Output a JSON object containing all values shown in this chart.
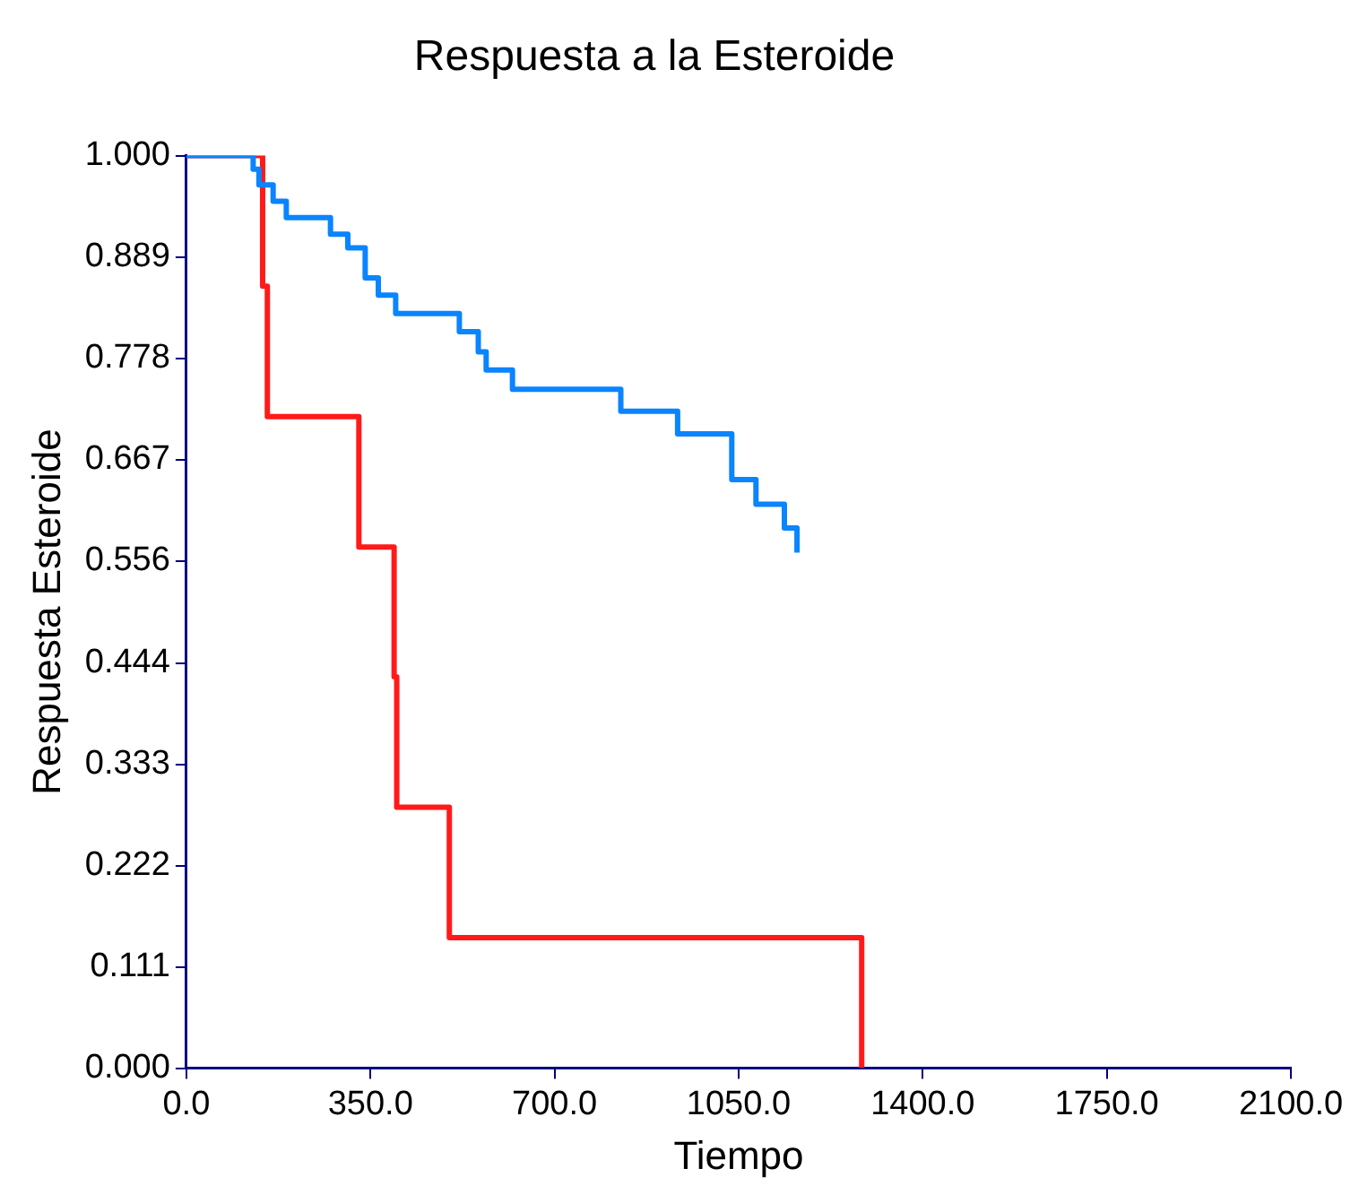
{
  "chart_data": {
    "type": "step",
    "title": "Respuesta a la Esteroide",
    "xlabel": "Tiempo",
    "ylabel": "Respuesta Esteroide",
    "xlim": [
      0,
      2100
    ],
    "ylim": [
      0,
      1
    ],
    "xticks": [
      {
        "value": 0,
        "label": "0.0"
      },
      {
        "value": 350,
        "label": "350.0"
      },
      {
        "value": 700,
        "label": "700.0"
      },
      {
        "value": 1050,
        "label": "1050.0"
      },
      {
        "value": 1400,
        "label": "1400.0"
      },
      {
        "value": 1750,
        "label": "1750.0"
      },
      {
        "value": 2100,
        "label": "2100.0"
      }
    ],
    "yticks": [
      {
        "value": 0,
        "label": "0.000"
      },
      {
        "value": 0.111,
        "label": "0.111"
      },
      {
        "value": 0.222,
        "label": "0.222"
      },
      {
        "value": 0.333,
        "label": "0.333"
      },
      {
        "value": 0.444,
        "label": "0.444"
      },
      {
        "value": 0.556,
        "label": "0.556"
      },
      {
        "value": 0.667,
        "label": "0.667"
      },
      {
        "value": 0.778,
        "label": "0.778"
      },
      {
        "value": 0.889,
        "label": "0.889"
      },
      {
        "value": 1,
        "label": "1.000"
      }
    ],
    "grid": false,
    "legend": false,
    "series": [
      {
        "color": "#0a84ff",
        "x": [
          0,
          127,
          138,
          165,
          190,
          274,
          307,
          340,
          365,
          398,
          519,
          555,
          570,
          620,
          826,
          934,
          1037,
          1083,
          1137,
          1161
        ],
        "values": [
          1,
          0.985,
          0.968,
          0.95,
          0.932,
          0.914,
          0.899,
          0.866,
          0.847,
          0.827,
          0.807,
          0.785,
          0.765,
          0.744,
          0.72,
          0.695,
          0.645,
          0.618,
          0.592,
          0.565
        ]
      },
      {
        "color": "#ff1a1a",
        "x": [
          0,
          145,
          154,
          328,
          395,
          400,
          500,
          1284
        ],
        "values": [
          1,
          0.857,
          0.714,
          0.571,
          0.429,
          0.286,
          0.143,
          0
        ]
      }
    ]
  }
}
